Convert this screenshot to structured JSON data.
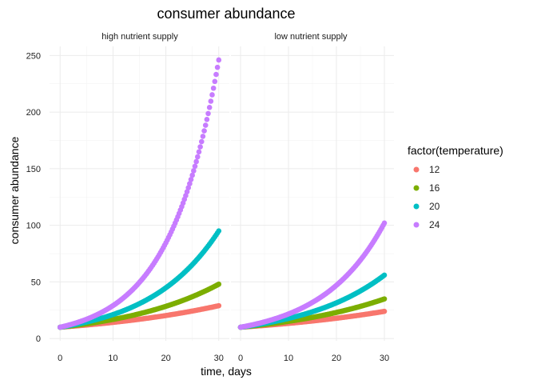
{
  "chart_data": {
    "type": "scatter",
    "title": "consumer abundance",
    "xlabel": "time, days",
    "ylabel": "consumer abundance",
    "xlim": [
      -2,
      32
    ],
    "ylim": [
      -2,
      258
    ],
    "x_ticks": [
      0,
      10,
      20,
      30
    ],
    "y_ticks": [
      0,
      50,
      100,
      150,
      200,
      250
    ],
    "grid": true,
    "legend": {
      "title": "factor(temperature)",
      "placement": "right",
      "entries": [
        "12",
        "16",
        "20",
        "24"
      ]
    },
    "colors": {
      "12": "#F8766D",
      "16": "#7CAE00",
      "20": "#00BFC4",
      "24": "#C77CFF"
    },
    "panels": [
      {
        "strip": "high nutrient supply",
        "series": [
          {
            "name": "12",
            "x0": 0,
            "x1": 30,
            "y0": 10,
            "y1": 29
          },
          {
            "name": "16",
            "x0": 0,
            "x1": 30,
            "y0": 10,
            "y1": 48
          },
          {
            "name": "20",
            "x0": 0,
            "x1": 30,
            "y0": 10,
            "y1": 95
          },
          {
            "name": "24",
            "x0": 0,
            "x1": 30,
            "y0": 10,
            "y1": 246
          }
        ]
      },
      {
        "strip": "low nutrient supply",
        "series": [
          {
            "name": "12",
            "x0": 0,
            "x1": 30,
            "y0": 10,
            "y1": 24
          },
          {
            "name": "16",
            "x0": 0,
            "x1": 30,
            "y0": 10,
            "y1": 35
          },
          {
            "name": "20",
            "x0": 0,
            "x1": 30,
            "y0": 10,
            "y1": 56
          },
          {
            "name": "24",
            "x0": 0,
            "x1": 30,
            "y0": 10,
            "y1": 102
          }
        ]
      }
    ]
  }
}
